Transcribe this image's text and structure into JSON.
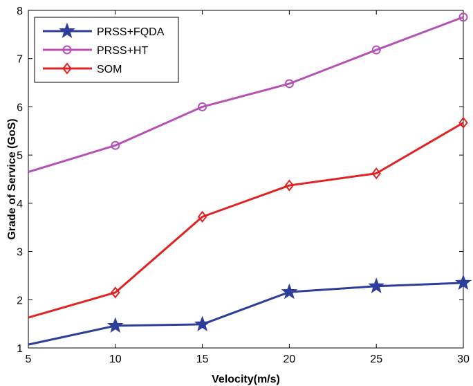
{
  "chart_data": {
    "type": "line",
    "xlabel": "Velocity(m/s)",
    "ylabel": "Grade of Service (GoS)",
    "xlim": [
      5,
      30
    ],
    "ylim": [
      1,
      8
    ],
    "xticks": [
      "5",
      "10",
      "15",
      "20",
      "25",
      "30"
    ],
    "yticks": [
      "1",
      "2",
      "3",
      "4",
      "5",
      "6",
      "7",
      "8"
    ],
    "x": [
      5,
      10,
      15,
      20,
      25,
      30
    ],
    "grid": false,
    "legend_position": "top-left",
    "series": [
      {
        "name": "PRSS+FQDA",
        "color": "#2c3e99",
        "marker": "star",
        "values": [
          1.07,
          1.46,
          1.49,
          2.16,
          2.28,
          2.35
        ]
      },
      {
        "name": "PRSS+HT",
        "color": "#b452b4",
        "marker": "circle",
        "values": [
          4.65,
          5.2,
          6.0,
          6.48,
          7.18,
          7.86
        ]
      },
      {
        "name": "SOM",
        "color": "#e02222",
        "marker": "diamond",
        "values": [
          1.63,
          2.15,
          3.72,
          4.37,
          4.62,
          5.67
        ]
      }
    ]
  }
}
